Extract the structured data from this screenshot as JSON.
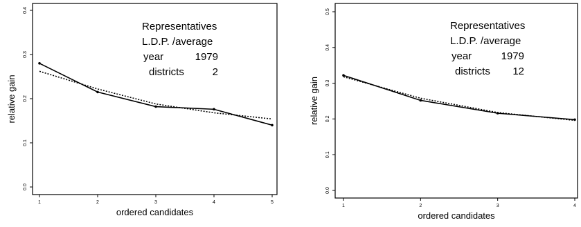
{
  "chart_data": [
    {
      "type": "line",
      "xlabel": "ordered candidates",
      "ylabel": "relative gain",
      "xlim": [
        1,
        5
      ],
      "ylim": [
        0,
        0.4
      ],
      "x_ticks": [
        "1",
        "2",
        "3",
        "4",
        "5"
      ],
      "y_ticks": [
        "0.0",
        "0.1",
        "0.2",
        "0.3",
        "0.4"
      ],
      "annotations": [
        {
          "label": "Representatives",
          "value": ""
        },
        {
          "label": "L.D.P.  /average",
          "value": ""
        },
        {
          "label": "year",
          "value": "1979"
        },
        {
          "label": "districts",
          "value": "2"
        }
      ],
      "x": [
        1,
        2,
        3,
        4,
        5
      ],
      "series": [
        {
          "style": "solid",
          "values": [
            0.28,
            0.215,
            0.182,
            0.176,
            0.14
          ]
        },
        {
          "style": "dotted",
          "values": [
            0.262,
            0.222,
            0.188,
            0.168,
            0.154
          ]
        }
      ]
    },
    {
      "type": "line",
      "xlabel": "ordered candidates",
      "ylabel": "relative gain",
      "xlim": [
        1,
        4
      ],
      "ylim": [
        0,
        0.5
      ],
      "x_ticks": [
        "1",
        "2",
        "3",
        "4"
      ],
      "y_ticks": [
        "0.0",
        "0.1",
        "0.2",
        "0.3",
        "0.4",
        "0.5"
      ],
      "annotations": [
        {
          "label": "Representatives",
          "value": ""
        },
        {
          "label": "L.D.P.  /average",
          "value": ""
        },
        {
          "label": "year",
          "value": "1979"
        },
        {
          "label": "districts",
          "value": "12"
        }
      ],
      "x": [
        1,
        2,
        3,
        4
      ],
      "series": [
        {
          "style": "solid",
          "values": [
            0.322,
            0.252,
            0.216,
            0.198
          ]
        },
        {
          "style": "dotted",
          "values": [
            0.318,
            0.258,
            0.218,
            0.196
          ]
        }
      ]
    }
  ]
}
